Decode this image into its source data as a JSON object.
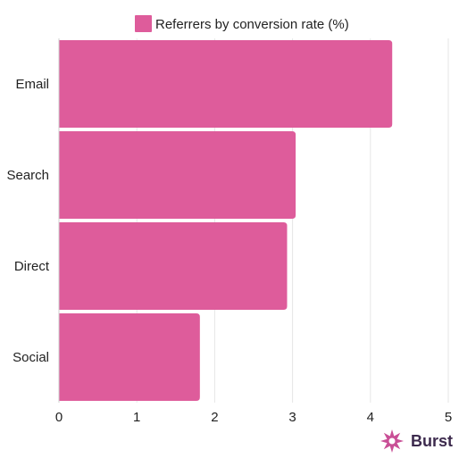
{
  "chart_data": {
    "type": "bar",
    "orientation": "horizontal",
    "categories": [
      "Email",
      "Search",
      "Direct",
      "Social"
    ],
    "series": [
      {
        "name": "Referrers by conversion rate (%)",
        "values": [
          4.28,
          3.04,
          2.93,
          1.81
        ],
        "color": "#de5c9b"
      }
    ],
    "xlim": [
      0,
      5
    ],
    "xticks": [
      "0",
      "1",
      "2",
      "3",
      "4",
      "5"
    ],
    "grid": true,
    "legend_position": "top"
  },
  "branding": {
    "name": "Burst",
    "icon": "burst-logo-icon",
    "icon_color": "#c94f96",
    "text_color": "#3c2a4d"
  }
}
